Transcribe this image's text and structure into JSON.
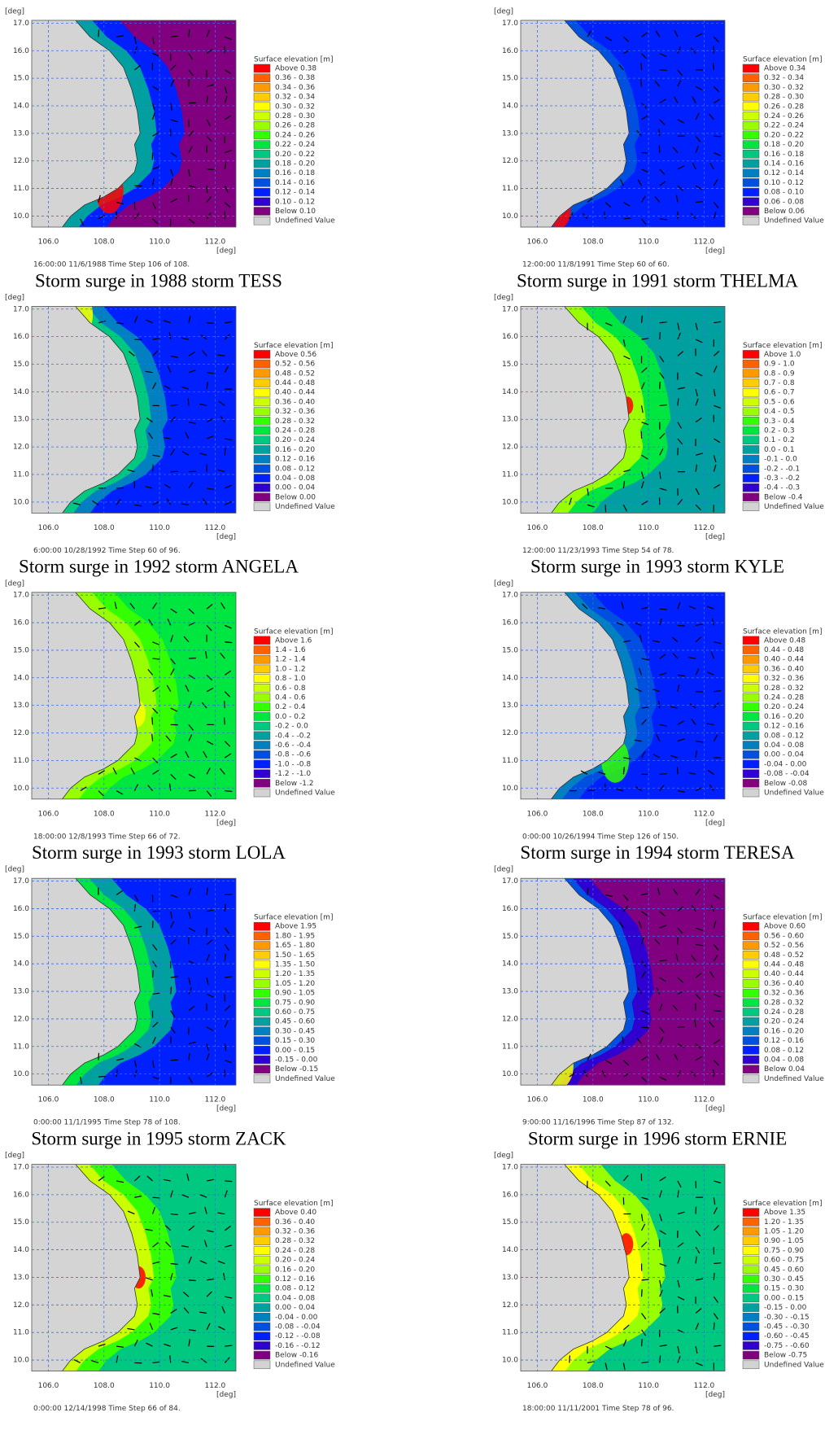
{
  "axes": {
    "unit": "[deg]",
    "xlim": [
      105.4,
      112.75
    ],
    "ylim": [
      9.6,
      17.1
    ],
    "xticks": [
      {
        "value": 106,
        "label": "106.0"
      },
      {
        "value": 108,
        "label": "108.0"
      },
      {
        "value": 110,
        "label": "110.0"
      },
      {
        "value": 112,
        "label": "112.0"
      }
    ],
    "yticks": [
      {
        "value": 10,
        "label": "10.0"
      },
      {
        "value": 11,
        "label": "11.0"
      },
      {
        "value": 12,
        "label": "12.0"
      },
      {
        "value": 13,
        "label": "13.0"
      },
      {
        "value": 14,
        "label": "14.0"
      },
      {
        "value": 15,
        "label": "15.0"
      },
      {
        "value": 16,
        "label": "16.0"
      },
      {
        "value": 17,
        "label": "17.0"
      }
    ]
  },
  "legend_title": "Surface elevation [m]",
  "legend_colors": [
    "#ff0000",
    "#ff6000",
    "#ff9900",
    "#ffcc00",
    "#ffff00",
    "#ccff00",
    "#99ff00",
    "#33ff00",
    "#00e640",
    "#00c880",
    "#00a0a0",
    "#0080c0",
    "#0050e0",
    "#0020ff",
    "#3000d0",
    "#800080"
  ],
  "undefined_label": "Undefined Value",
  "undefined_color": "#d3d3d3",
  "panels": [
    {
      "timestamp": "16:00:00 11/6/1988  Time Step 106 of 108.",
      "caption": "Storm surge in 1988 storm TESS",
      "legend": [
        "Above 0.38",
        "0.36 - 0.38",
        "0.34 - 0.36",
        "0.32 - 0.34",
        "0.30 - 0.32",
        "0.28 - 0.30",
        "0.26 - 0.28",
        "0.24 - 0.26",
        "0.22 - 0.24",
        "0.20 - 0.22",
        "0.18 - 0.20",
        "0.16 - 0.18",
        "0.14 - 0.16",
        "0.12 - 0.14",
        "0.10 - 0.12",
        "Below 0.10"
      ]
    },
    {
      "timestamp": "12:00:00 11/8/1991  Time Step 60 of 60.",
      "caption": "Storm surge in 1991 storm THELMA",
      "legend": [
        "Above 0.34",
        "0.32 - 0.34",
        "0.30 - 0.32",
        "0.28 - 0.30",
        "0.26 - 0.28",
        "0.24 - 0.26",
        "0.22 - 0.24",
        "0.20 - 0.22",
        "0.18 - 0.20",
        "0.16 - 0.18",
        "0.14 - 0.16",
        "0.12 - 0.14",
        "0.10 - 0.12",
        "0.08 - 0.10",
        "0.06 - 0.08",
        "Below 0.06"
      ]
    },
    {
      "timestamp": "6:00:00 10/28/1992  Time Step 60 of 96.",
      "caption": "Storm surge in 1992 storm ANGELA",
      "legend": [
        "Above 0.56",
        "0.52 - 0.56",
        "0.48 - 0.52",
        "0.44 - 0.48",
        "0.40 - 0.44",
        "0.36 - 0.40",
        "0.32 - 0.36",
        "0.28 - 0.32",
        "0.24 - 0.28",
        "0.20 - 0.24",
        "0.16 - 0.20",
        "0.12 - 0.16",
        "0.08 - 0.12",
        "0.04 - 0.08",
        "0.00 - 0.04",
        "Below 0.00"
      ]
    },
    {
      "timestamp": "12:00:00 11/23/1993  Time Step 54 of 78.",
      "caption": "Storm surge in 1993 storm KYLE",
      "legend": [
        "Above 1.0",
        "0.9 - 1.0",
        "0.8 - 0.9",
        "0.7 - 0.8",
        "0.6 - 0.7",
        "0.5 - 0.6",
        "0.4 - 0.5",
        "0.3 - 0.4",
        "0.2 - 0.3",
        "0.1 - 0.2",
        "0.0 - 0.1",
        "-0.1 - 0.0",
        "-0.2 - -0.1",
        "-0.3 - -0.2",
        "-0.4 - -0.3",
        "Below -0.4"
      ]
    },
    {
      "timestamp": "18:00:00 12/8/1993  Time Step 66 of 72.",
      "caption": "Storm surge in 1993 storm LOLA",
      "legend": [
        "Above 1.6",
        "1.4 - 1.6",
        "1.2 - 1.4",
        "1.0 - 1.2",
        "0.8 - 1.0",
        "0.6 - 0.8",
        "0.4 - 0.6",
        "0.2 - 0.4",
        "0.0 - 0.2",
        "-0.2 - 0.0",
        "-0.4 - -0.2",
        "-0.6 - -0.4",
        "-0.8 - -0.6",
        "-1.0 - -0.8",
        "-1.2 - -1.0",
        "Below -1.2"
      ]
    },
    {
      "timestamp": "0:00:00 10/26/1994  Time Step 126 of 150.",
      "caption": "Storm surge in 1994 storm TERESA",
      "legend": [
        "Above 0.48",
        "0.44 - 0.48",
        "0.40 - 0.44",
        "0.36 - 0.40",
        "0.32 - 0.36",
        "0.28 - 0.32",
        "0.24 - 0.28",
        "0.20 - 0.24",
        "0.16 - 0.20",
        "0.12 - 0.16",
        "0.08 - 0.12",
        "0.04 - 0.08",
        "0.00 - 0.04",
        "-0.04 - 0.00",
        "-0.08 - -0.04",
        "Below -0.08"
      ]
    },
    {
      "timestamp": "0:00:00 11/1/1995  Time Step 78 of 108.",
      "caption": "Storm surge in 1995 storm ZACK",
      "legend": [
        "Above 1.95",
        "1.80 - 1.95",
        "1.65 - 1.80",
        "1.50 - 1.65",
        "1.35 - 1.50",
        "1.20 - 1.35",
        "1.05 - 1.20",
        "0.90 - 1.05",
        "0.75 - 0.90",
        "0.60 - 0.75",
        "0.45 - 0.60",
        "0.30 - 0.45",
        "0.15 - 0.30",
        "0.00 - 0.15",
        "-0.15 - 0.00",
        "Below -0.15"
      ]
    },
    {
      "timestamp": "9:00:00 11/16/1996  Time Step 87 of 132.",
      "caption": "Storm surge in 1996 storm ERNIE",
      "legend": [
        "Above 0.60",
        "0.56 - 0.60",
        "0.52 - 0.56",
        "0.48 - 0.52",
        "0.44 - 0.48",
        "0.40 - 0.44",
        "0.36 - 0.40",
        "0.32 - 0.36",
        "0.28 - 0.32",
        "0.24 - 0.28",
        "0.20 - 0.24",
        "0.16 - 0.20",
        "0.12 - 0.16",
        "0.08 - 0.12",
        "0.04 - 0.08",
        "Below 0.04"
      ]
    },
    {
      "timestamp": "0:00:00 12/14/1998  Time Step 66 of 84.",
      "legend": [
        "Above 0.40",
        "0.36 - 0.40",
        "0.32 - 0.36",
        "0.28 - 0.32",
        "0.24 - 0.28",
        "0.20 - 0.24",
        "0.16 - 0.20",
        "0.12 - 0.16",
        "0.08 - 0.12",
        "0.04 - 0.08",
        "0.00 - 0.04",
        "-0.04 - 0.00",
        "-0.08 - -0.04",
        "-0.12 - -0.08",
        "-0.16 - -0.12",
        "Below -0.16"
      ]
    },
    {
      "timestamp": "18:00:00 11/11/2001  Time Step 78 of 96.",
      "legend": [
        "Above 1.35",
        "1.20 - 1.35",
        "1.05 - 1.20",
        "0.90 - 1.05",
        "0.75 - 0.90",
        "0.60 - 0.75",
        "0.45 - 0.60",
        "0.30 - 0.45",
        "0.15 - 0.30",
        "0.00 - 0.15",
        "-0.15 - 0.00",
        "-0.30 - -0.15",
        "-0.45 - -0.30",
        "-0.60 - -0.45",
        "-0.75 - -0.60",
        "Below -0.75"
      ]
    }
  ]
}
